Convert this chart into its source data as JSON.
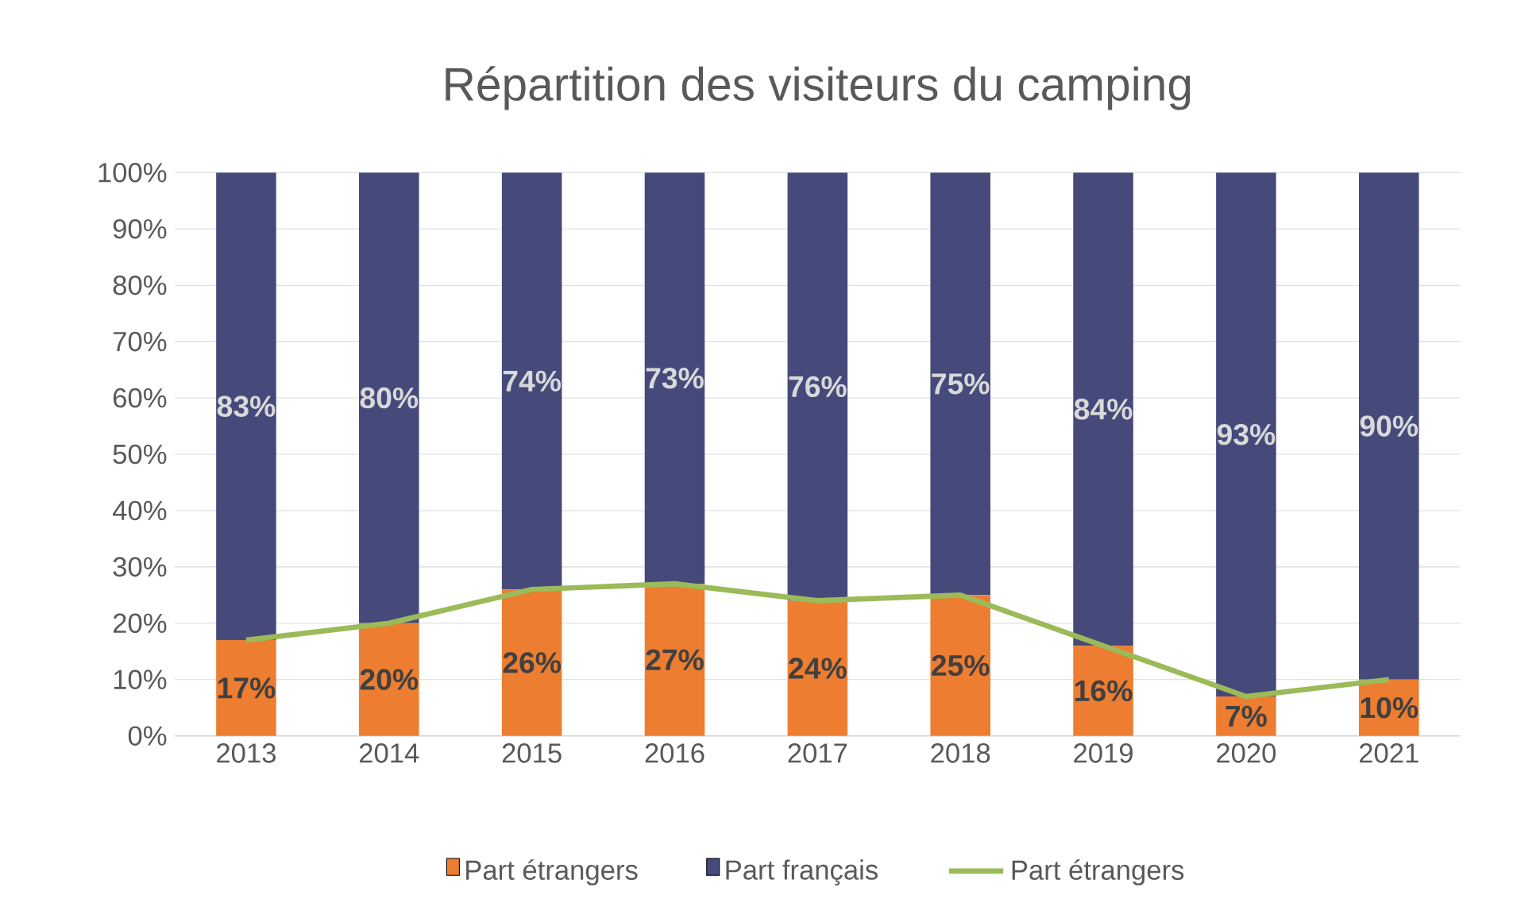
{
  "chart_data": {
    "type": "bar",
    "title": "Répartition des visiteurs du camping",
    "categories": [
      "2013",
      "2014",
      "2015",
      "2016",
      "2017",
      "2018",
      "2019",
      "2020",
      "2021"
    ],
    "stacked": true,
    "series": [
      {
        "name": "Part étrangers",
        "color": "#ed7d31",
        "values": [
          17,
          20,
          26,
          27,
          24,
          25,
          16,
          7,
          10
        ],
        "value_labels": [
          "17%",
          "20%",
          "26%",
          "27%",
          "24%",
          "25%",
          "16%",
          "7%",
          "10%"
        ]
      },
      {
        "name": "Part français",
        "color": "#454a7a",
        "values": [
          83,
          80,
          74,
          73,
          76,
          75,
          84,
          93,
          90
        ],
        "value_labels": [
          "83%",
          "80%",
          "74%",
          "73%",
          "76%",
          "75%",
          "84%",
          "93%",
          "90%"
        ]
      },
      {
        "name": "Part étrangers",
        "type": "line",
        "color": "#9bbb59",
        "values": [
          17,
          20,
          26,
          27,
          24,
          25,
          16,
          7,
          10
        ]
      }
    ],
    "ylim": [
      0,
      100
    ],
    "yticks": [
      {
        "value": 0,
        "label": "0%"
      },
      {
        "value": 10,
        "label": "10%"
      },
      {
        "value": 20,
        "label": "20%"
      },
      {
        "value": 30,
        "label": "30%"
      },
      {
        "value": 40,
        "label": "40%"
      },
      {
        "value": 50,
        "label": "50%"
      },
      {
        "value": 60,
        "label": "60%"
      },
      {
        "value": 70,
        "label": "70%"
      },
      {
        "value": 80,
        "label": "80%"
      },
      {
        "value": 90,
        "label": "90%"
      },
      {
        "value": 100,
        "label": "100%"
      }
    ],
    "grid": "y",
    "legend": "bottom"
  }
}
